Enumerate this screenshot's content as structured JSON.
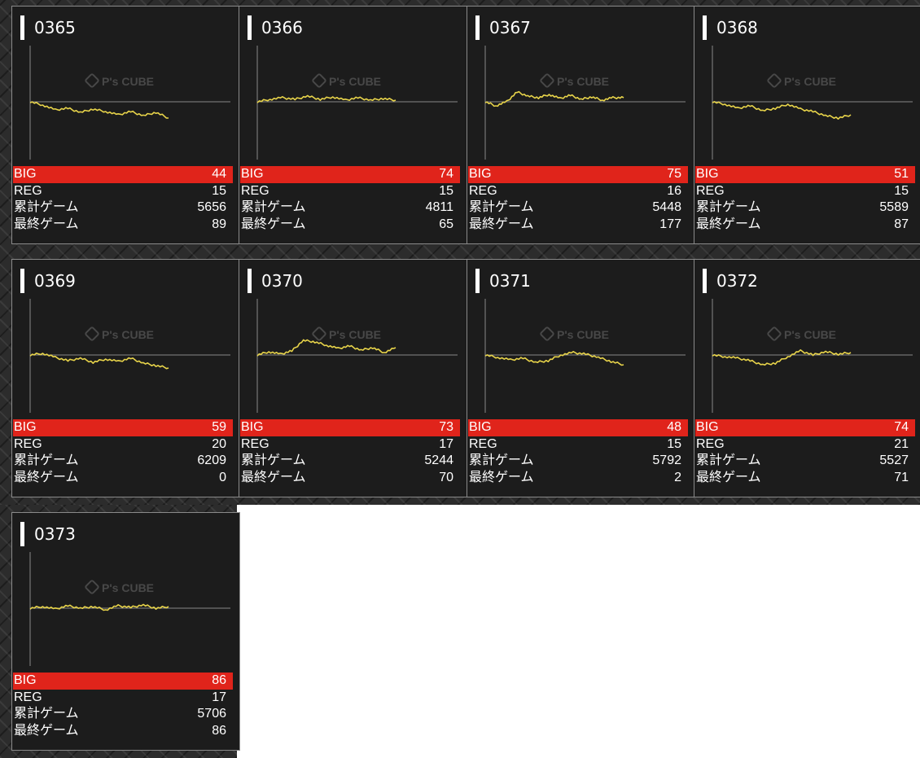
{
  "colors": {
    "card_background": "#1c1c1c",
    "card_border": "#8a8a8a",
    "big_highlight": "#e0241b",
    "graph_line": "#e8d44a",
    "graph_baseline": "#888888",
    "text": "#ffffff"
  },
  "watermark": {
    "logo_text": "P's CUBE",
    "icon": "cube-logo-icon"
  },
  "labels": {
    "big": "BIG",
    "reg": "REG",
    "total_games": "累計ゲーム",
    "last_games": "最終ゲーム"
  },
  "machines": [
    {
      "number": "0365",
      "big": "44",
      "reg": "15",
      "total_games": "5656",
      "last_games": "89",
      "trend": [
        0,
        -4,
        -10,
        -8,
        -13,
        -9,
        -12,
        -16,
        -12,
        -17,
        -13,
        -20
      ]
    },
    {
      "number": "0366",
      "big": "74",
      "reg": "15",
      "total_games": "4811",
      "last_games": "65",
      "trend": [
        0,
        3,
        5,
        3,
        7,
        3,
        6,
        2,
        5,
        2,
        4,
        2
      ]
    },
    {
      "number": "0367",
      "big": "75",
      "reg": "16",
      "total_games": "5448",
      "last_games": "177",
      "trend": [
        0,
        -5,
        0,
        12,
        7,
        5,
        9,
        4,
        8,
        3,
        6,
        2,
        5,
        5
      ]
    },
    {
      "number": "0368",
      "big": "51",
      "reg": "15",
      "total_games": "5589",
      "last_games": "87",
      "trend": [
        0,
        -3,
        -8,
        -5,
        -11,
        -8,
        -3,
        -9,
        -12,
        -17,
        -20,
        -16
      ]
    },
    {
      "number": "0369",
      "big": "59",
      "reg": "20",
      "total_games": "6209",
      "last_games": "0",
      "trend": [
        0,
        2,
        -3,
        -7,
        -4,
        -9,
        -5,
        -8,
        -4,
        -10,
        -13,
        -16
      ]
    },
    {
      "number": "0370",
      "big": "73",
      "reg": "17",
      "total_games": "5244",
      "last_games": "70",
      "trend": [
        0,
        4,
        1,
        5,
        18,
        16,
        12,
        8,
        11,
        6,
        9,
        3,
        9
      ]
    },
    {
      "number": "0371",
      "big": "48",
      "reg": "15",
      "total_games": "5792",
      "last_games": "2",
      "trend": [
        0,
        -3,
        -6,
        -4,
        -9,
        -7,
        0,
        3,
        1,
        -3,
        -8,
        -12
      ]
    },
    {
      "number": "0372",
      "big": "74",
      "reg": "21",
      "total_games": "5527",
      "last_games": "71",
      "trend": [
        0,
        -2,
        -4,
        -7,
        -12,
        -10,
        -2,
        5,
        0,
        4,
        1,
        3
      ]
    },
    {
      "number": "0373",
      "big": "86",
      "reg": "17",
      "total_games": "5706",
      "last_games": "86",
      "trend": [
        0,
        2,
        -1,
        3,
        0,
        2,
        -2,
        3,
        1,
        4,
        0,
        2
      ]
    }
  ]
}
